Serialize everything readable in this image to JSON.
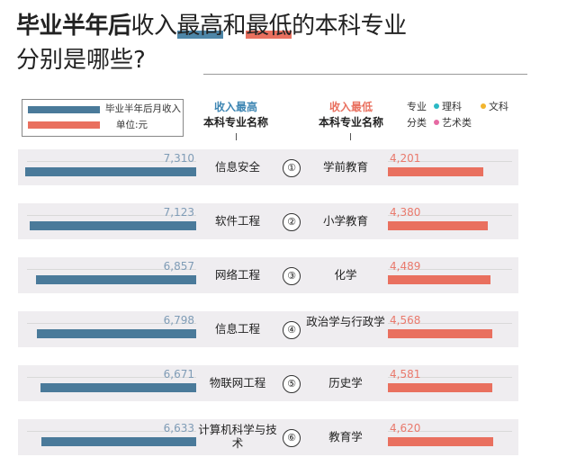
{
  "title": {
    "part1": "毕业半年后",
    "part2": "收入",
    "part3": "最高",
    "part4": "和",
    "part5": "最低",
    "part6": "的本科专业",
    "line2": "分别是哪些?"
  },
  "legend": {
    "series_high": "毕业半年后月收入",
    "unit": "单位:元"
  },
  "headers": {
    "high_line1": "收入最高",
    "high_line2": "本科专业名称",
    "low_line1": "收入最低",
    "low_line2": "本科专业名称"
  },
  "category_legend": {
    "label_line1": "专业",
    "label_line2": "分类",
    "science": "理科",
    "liberal": "文科",
    "art": "艺术类"
  },
  "colors": {
    "high": "#4a7a9a",
    "low": "#e9705f",
    "high_value_text": "#7f9cb6",
    "underline_high": "#4d86a8",
    "underline_low": "#e9705f",
    "science_dot": "#2bb8c4",
    "liberal_dot": "#f2b52e",
    "art_dot": "#e66aa3"
  },
  "chart_data": {
    "type": "bar",
    "title": "毕业半年后收入最高和最低的本科专业分别是哪些?",
    "unit": "元",
    "ranks": [
      "①",
      "②",
      "③",
      "④",
      "⑤",
      "⑥"
    ],
    "high_range": [
      0,
      7310
    ],
    "low_range": [
      0,
      4620
    ],
    "series": [
      {
        "name": "收入最高",
        "categories": [
          "信息安全",
          "软件工程",
          "网络工程",
          "信息工程",
          "物联网工程",
          "计算机科学与技术"
        ],
        "values": [
          7310,
          7123,
          6857,
          6798,
          6671,
          6633
        ],
        "labels": [
          "7,310",
          "7,123",
          "6,857",
          "6,798",
          "6,671",
          "6,633"
        ]
      },
      {
        "name": "收入最低",
        "categories": [
          "学前教育",
          "小学教育",
          "化学",
          "政治学与行政学",
          "历史学",
          "教育学"
        ],
        "values": [
          4201,
          4380,
          4489,
          4568,
          4581,
          4620
        ],
        "labels": [
          "4,201",
          "4,380",
          "4,489",
          "4,568",
          "4,581",
          "4,620"
        ]
      }
    ]
  }
}
